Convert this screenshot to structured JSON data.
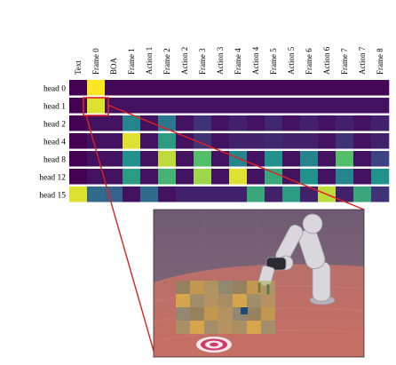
{
  "columns": [
    "Text",
    "Frame 0",
    "BOA",
    "Frame 1",
    "Action 1",
    "Frame 2",
    "Action 2",
    "Frame 3",
    "Action 3",
    "Frame 4",
    "Action 4",
    "Frame 5",
    "Action 5",
    "Frame 6",
    "Action 6",
    "Frame 7",
    "Action 7",
    "Frame 8"
  ],
  "rows": [
    {
      "label": "head  0",
      "values": [
        0.0,
        1.0,
        0.02,
        0.02,
        0.02,
        0.02,
        0.02,
        0.02,
        0.02,
        0.02,
        0.02,
        0.02,
        0.02,
        0.02,
        0.02,
        0.02,
        0.02,
        0.02
      ]
    },
    {
      "label": "head  1",
      "values": [
        0.0,
        0.95,
        0.05,
        0.05,
        0.05,
        0.05,
        0.05,
        0.05,
        0.05,
        0.05,
        0.05,
        0.05,
        0.05,
        0.05,
        0.05,
        0.05,
        0.05,
        0.05
      ]
    },
    {
      "label": "head  2",
      "values": [
        0.0,
        0.05,
        0.05,
        0.45,
        0.05,
        0.4,
        0.05,
        0.15,
        0.05,
        0.1,
        0.05,
        0.12,
        0.05,
        0.1,
        0.05,
        0.1,
        0.05,
        0.1
      ]
    },
    {
      "label": "head  4",
      "values": [
        0.0,
        0.05,
        0.05,
        0.95,
        0.05,
        0.55,
        0.05,
        0.15,
        0.05,
        0.1,
        0.1,
        0.12,
        0.1,
        0.1,
        0.05,
        0.15,
        0.05,
        0.1
      ]
    },
    {
      "label": "head  8",
      "values": [
        0.0,
        0.05,
        0.05,
        0.5,
        0.05,
        0.9,
        0.05,
        0.7,
        0.05,
        0.45,
        0.05,
        0.5,
        0.05,
        0.45,
        0.05,
        0.7,
        0.05,
        0.2
      ]
    },
    {
      "label": "head 12",
      "values": [
        0.0,
        0.05,
        0.05,
        0.55,
        0.05,
        0.65,
        0.05,
        0.85,
        0.05,
        0.95,
        0.05,
        0.6,
        0.05,
        0.5,
        0.05,
        0.45,
        0.05,
        0.5
      ]
    },
    {
      "label": "head 15",
      "values": [
        0.95,
        0.35,
        0.3,
        0.05,
        0.35,
        0.05,
        0.1,
        0.1,
        0.1,
        0.1,
        0.6,
        0.1,
        0.55,
        0.1,
        0.9,
        0.1,
        0.6,
        0.15
      ]
    }
  ]
}
